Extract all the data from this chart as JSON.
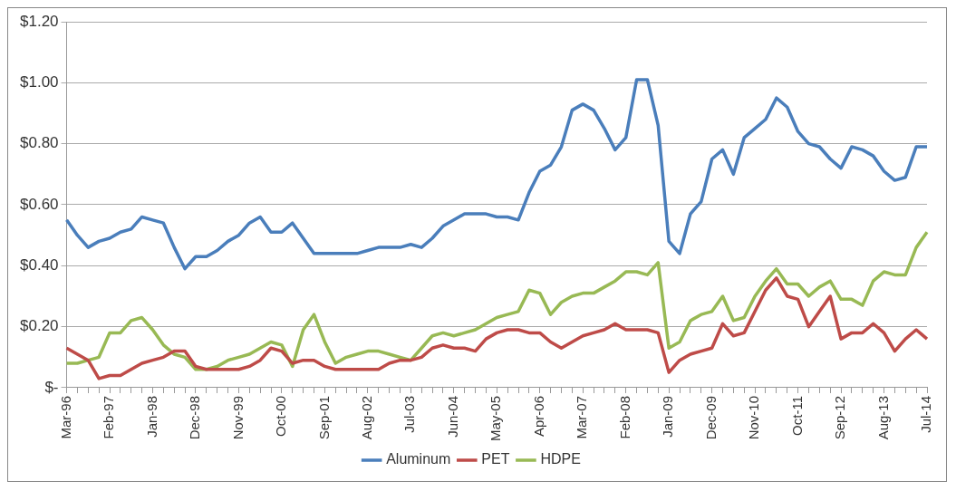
{
  "chart_data": {
    "type": "line",
    "categories": [
      "Mar-96",
      null,
      null,
      null,
      "Feb-97",
      null,
      null,
      null,
      "Jan-98",
      null,
      null,
      null,
      "Dec-98",
      null,
      null,
      null,
      "Nov-99",
      null,
      null,
      null,
      "Oct-00",
      null,
      null,
      null,
      "Sep-01",
      null,
      null,
      null,
      "Aug-02",
      null,
      null,
      null,
      "Jul-03",
      null,
      null,
      null,
      "Jun-04",
      null,
      null,
      null,
      "May-05",
      null,
      null,
      null,
      "Apr-06",
      null,
      null,
      null,
      "Mar-07",
      null,
      null,
      null,
      "Feb-08",
      null,
      null,
      null,
      "Jan-09",
      null,
      null,
      null,
      "Dec-09",
      null,
      null,
      null,
      "Nov-10",
      null,
      null,
      null,
      "Oct-11",
      null,
      null,
      null,
      "Sep-12",
      null,
      null,
      null,
      "Aug-13",
      null,
      null,
      null,
      "Jul-14"
    ],
    "series": [
      {
        "name": "Aluminum",
        "color": "#4a7ebb",
        "values": [
          0.55,
          0.5,
          0.46,
          0.48,
          0.49,
          0.51,
          0.52,
          0.56,
          0.55,
          0.54,
          0.46,
          0.39,
          0.43,
          0.43,
          0.45,
          0.48,
          0.5,
          0.54,
          0.56,
          0.51,
          0.51,
          0.54,
          0.49,
          0.44,
          0.44,
          0.44,
          0.44,
          0.44,
          0.45,
          0.46,
          0.46,
          0.46,
          0.47,
          0.46,
          0.49,
          0.53,
          0.55,
          0.57,
          0.57,
          0.57,
          0.56,
          0.56,
          0.55,
          0.64,
          0.71,
          0.73,
          0.79,
          0.91,
          0.93,
          0.91,
          0.85,
          0.78,
          0.82,
          1.01,
          1.01,
          0.86,
          0.48,
          0.44,
          0.57,
          0.61,
          0.75,
          0.78,
          0.7,
          0.82,
          0.85,
          0.88,
          0.95,
          0.92,
          0.84,
          0.8,
          0.79,
          0.75,
          0.72,
          0.79,
          0.78,
          0.76,
          0.71,
          0.68,
          0.69,
          0.79,
          0.79
        ]
      },
      {
        "name": "PET",
        "color": "#be4b48",
        "values": [
          0.13,
          0.11,
          0.09,
          0.03,
          0.04,
          0.04,
          0.06,
          0.08,
          0.09,
          0.1,
          0.12,
          0.12,
          0.07,
          0.06,
          0.06,
          0.06,
          0.06,
          0.07,
          0.09,
          0.13,
          0.12,
          0.08,
          0.09,
          0.09,
          0.07,
          0.06,
          0.06,
          0.06,
          0.06,
          0.06,
          0.08,
          0.09,
          0.09,
          0.1,
          0.13,
          0.14,
          0.13,
          0.13,
          0.12,
          0.16,
          0.18,
          0.19,
          0.19,
          0.18,
          0.18,
          0.15,
          0.13,
          0.15,
          0.17,
          0.18,
          0.19,
          0.21,
          0.19,
          0.19,
          0.19,
          0.18,
          0.05,
          0.09,
          0.11,
          0.12,
          0.13,
          0.21,
          0.17,
          0.18,
          0.25,
          0.32,
          0.36,
          0.3,
          0.29,
          0.2,
          0.25,
          0.3,
          0.16,
          0.18,
          0.18,
          0.21,
          0.18,
          0.12,
          0.16,
          0.19,
          0.16
        ]
      },
      {
        "name": "HDPE",
        "color": "#98b954",
        "values": [
          0.08,
          0.08,
          0.09,
          0.1,
          0.18,
          0.18,
          0.22,
          0.23,
          0.19,
          0.14,
          0.11,
          0.1,
          0.06,
          0.06,
          0.07,
          0.09,
          0.1,
          0.11,
          0.13,
          0.15,
          0.14,
          0.07,
          0.19,
          0.24,
          0.15,
          0.08,
          0.1,
          0.11,
          0.12,
          0.12,
          0.11,
          0.1,
          0.09,
          0.13,
          0.17,
          0.18,
          0.17,
          0.18,
          0.19,
          0.21,
          0.23,
          0.24,
          0.25,
          0.32,
          0.31,
          0.24,
          0.28,
          0.3,
          0.31,
          0.31,
          0.33,
          0.35,
          0.38,
          0.38,
          0.37,
          0.41,
          0.13,
          0.15,
          0.22,
          0.24,
          0.25,
          0.3,
          0.22,
          0.23,
          0.3,
          0.35,
          0.39,
          0.34,
          0.34,
          0.3,
          0.33,
          0.35,
          0.29,
          0.29,
          0.27,
          0.35,
          0.38,
          0.37,
          0.37,
          0.46,
          0.51
        ]
      }
    ],
    "ylim": [
      0,
      1.2
    ],
    "yticks": [
      {
        "value": 0,
        "label": "$-"
      },
      {
        "value": 0.2,
        "label": "$0.20"
      },
      {
        "value": 0.4,
        "label": "$0.40"
      },
      {
        "value": 0.6,
        "label": "$0.60"
      },
      {
        "value": 0.8,
        "label": "$0.80"
      },
      {
        "value": 1,
        "label": "$1.00"
      },
      {
        "value": 1.2,
        "label": "$1.20"
      }
    ],
    "grid": "y",
    "legend": "bottom",
    "marker": "none",
    "line_style": "solid"
  }
}
